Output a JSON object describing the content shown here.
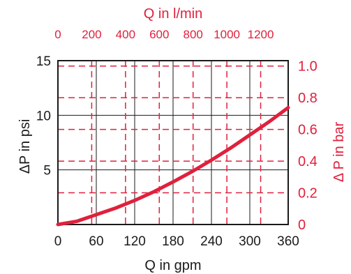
{
  "chart_data": {
    "type": "line",
    "colors": {
      "curve": "#e0203c",
      "secondary_axes": "#e0203c",
      "primary_axes": "#1a1a1a"
    },
    "axes": {
      "bottom": {
        "label": "Q in gpm",
        "range": [
          0,
          360
        ],
        "ticks": [
          0,
          60,
          120,
          180,
          240,
          300,
          360
        ]
      },
      "top": {
        "label": "Q in l/min",
        "range": [
          0,
          1363
        ],
        "ticks": [
          0,
          200,
          400,
          600,
          800,
          1000,
          1200
        ]
      },
      "left": {
        "label": "ΔP in psi",
        "range": [
          0,
          15
        ],
        "ticks": [
          5,
          10,
          15
        ],
        "tick_labels": [
          "5",
          "10",
          "15"
        ]
      },
      "right": {
        "label": "Δ P in bar",
        "range": [
          0,
          1.034
        ],
        "ticks": [
          0,
          0.2,
          0.4,
          0.6,
          0.8,
          1.0
        ],
        "tick_labels": [
          "0",
          "0.2",
          "0.4",
          "0.6",
          "0.8",
          "1.0"
        ]
      }
    },
    "grid": true,
    "series": [
      {
        "x": [
          0,
          30,
          60,
          90,
          120,
          150,
          180,
          210,
          240,
          270,
          300,
          330,
          360
        ],
        "y": [
          0,
          0.3,
          0.9,
          1.5,
          2.2,
          3.0,
          3.9,
          4.85,
          5.9,
          7.0,
          8.2,
          9.4,
          10.7
        ]
      }
    ]
  }
}
